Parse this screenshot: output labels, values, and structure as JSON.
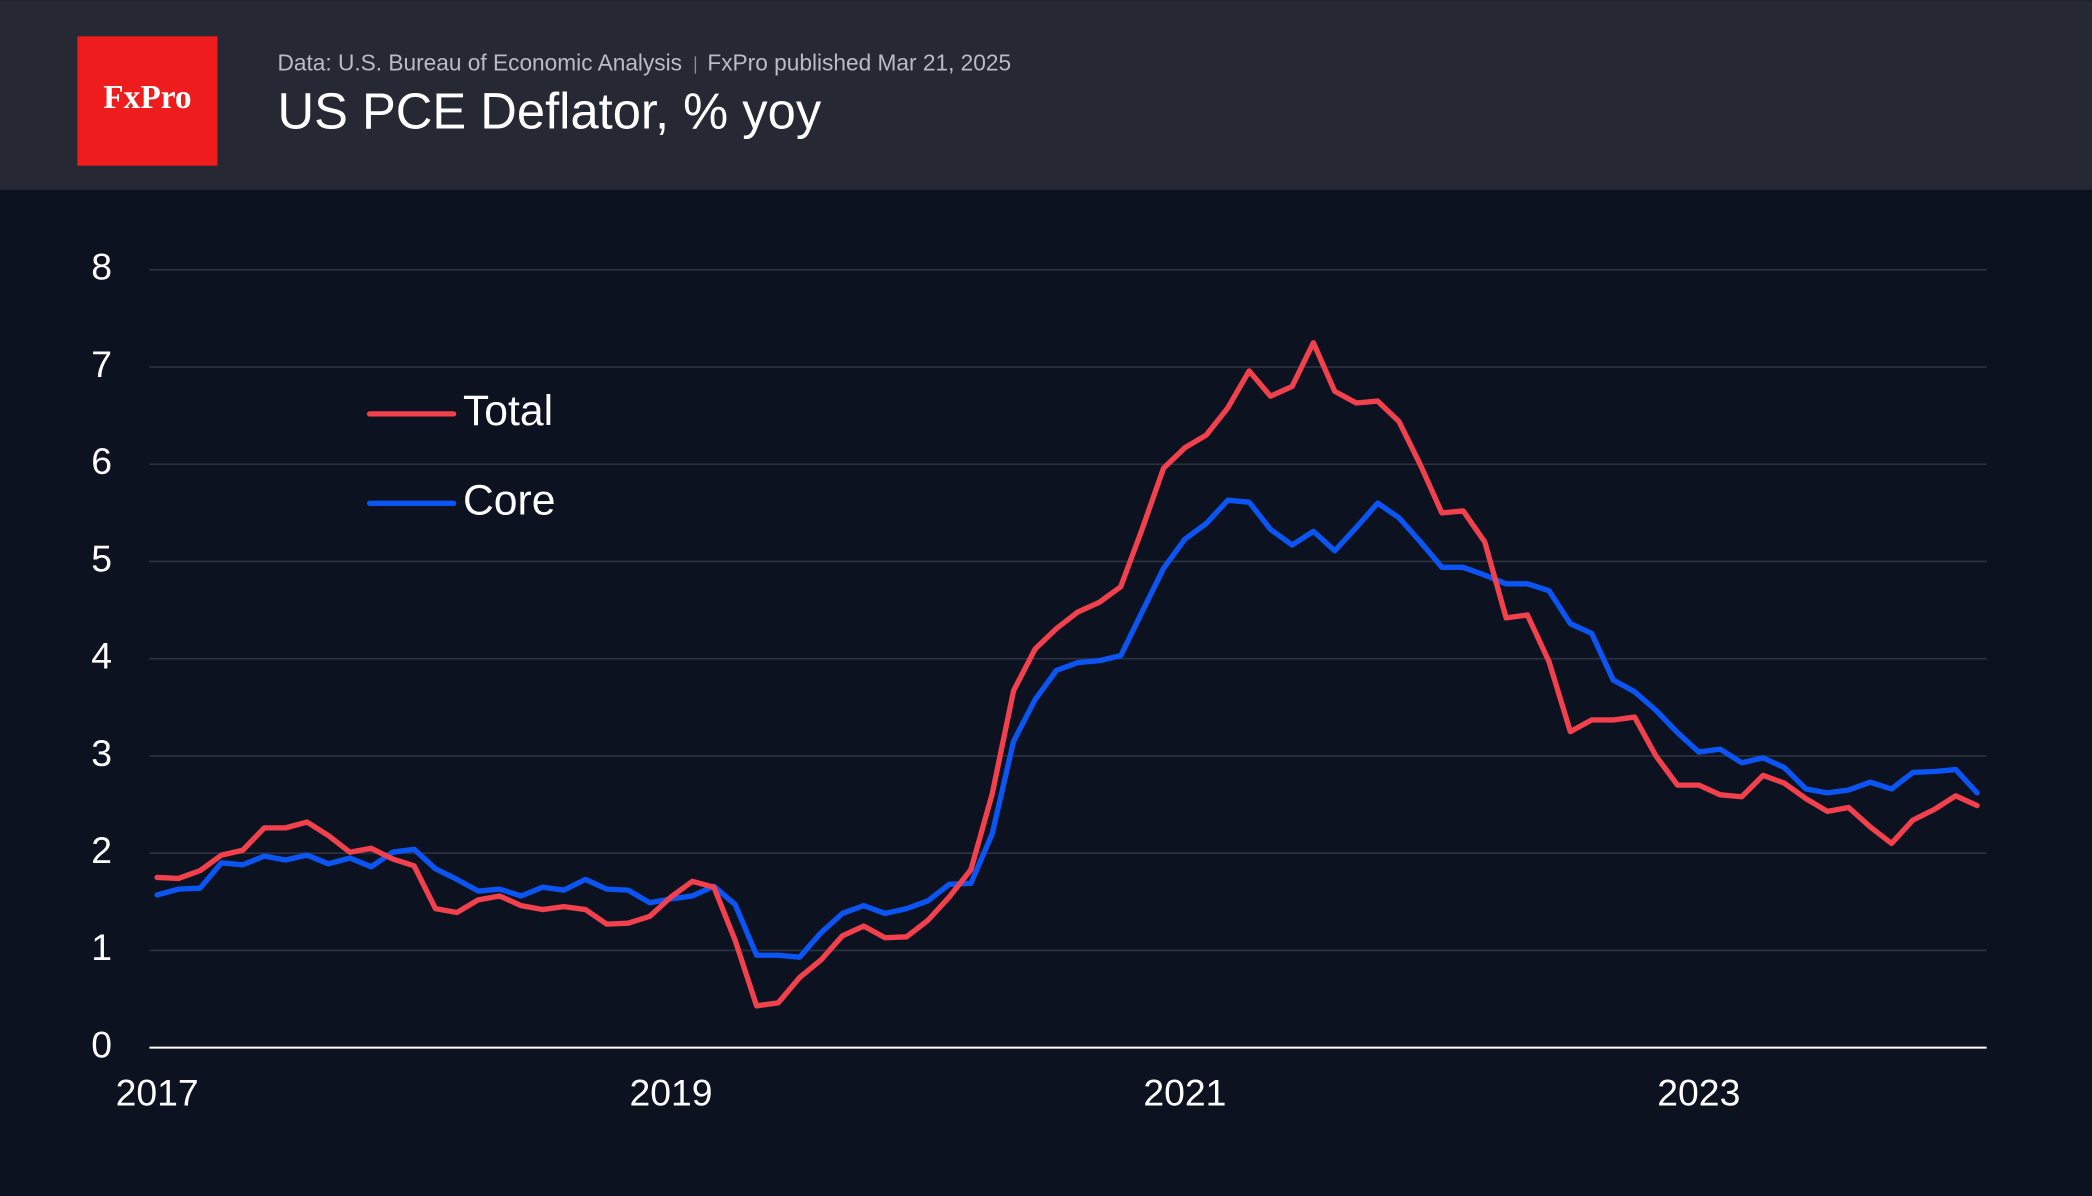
{
  "logo": "FxPro",
  "source": "Data: U.S. Bureau of Economic Analysis",
  "published": "FxPro published Mar 21, 2025",
  "chart_data": {
    "type": "line",
    "title": "US PCE Deflator, % yoy",
    "x": [
      2017,
      2017.083,
      2017.167,
      2017.25,
      2017.333,
      2017.417,
      2017.5,
      2017.583,
      2017.667,
      2017.75,
      2017.833,
      2017.917,
      2018,
      2018.083,
      2018.167,
      2018.25,
      2018.333,
      2018.417,
      2018.5,
      2018.583,
      2018.667,
      2018.75,
      2018.833,
      2018.917,
      2019,
      2019.083,
      2019.167,
      2019.25,
      2019.333,
      2019.417,
      2019.5,
      2019.583,
      2019.667,
      2019.75,
      2019.833,
      2019.917,
      2020,
      2020.083,
      2020.167,
      2020.25,
      2020.333,
      2020.417,
      2020.5,
      2020.583,
      2020.667,
      2020.75,
      2020.833,
      2020.917,
      2021,
      2021.083,
      2021.167,
      2021.25,
      2021.333,
      2021.417,
      2021.5,
      2021.583,
      2021.667,
      2021.75,
      2021.833,
      2021.917,
      2022,
      2022.083,
      2022.167,
      2022.25,
      2022.333,
      2022.417,
      2022.5,
      2022.583,
      2022.667,
      2022.75,
      2022.833,
      2022.917,
      2023,
      2023.083,
      2023.167,
      2023.25,
      2023.333,
      2023.417,
      2023.5,
      2023.583,
      2023.667,
      2023.75,
      2023.833,
      2023.917,
      2024,
      2024.083
    ],
    "series": [
      {
        "name": "Total",
        "color": "#f2414d",
        "values": [
          1.75,
          1.74,
          1.82,
          1.98,
          2.03,
          2.26,
          2.26,
          2.32,
          2.18,
          2.01,
          2.05,
          1.94,
          1.87,
          1.43,
          1.39,
          1.52,
          1.56,
          1.46,
          1.42,
          1.45,
          1.42,
          1.27,
          1.28,
          1.35,
          1.55,
          1.71,
          1.65,
          1.1,
          0.43,
          0.46,
          0.72,
          0.9,
          1.15,
          1.25,
          1.13,
          1.14,
          1.31,
          1.55,
          1.83,
          2.61,
          3.67,
          4.1,
          4.31,
          4.48,
          4.58,
          4.74,
          5.33,
          5.96,
          6.17,
          6.3,
          6.58,
          6.96,
          6.7,
          6.8,
          7.25,
          6.75,
          6.63,
          6.65,
          6.44,
          5.99,
          5.5,
          5.52,
          5.2,
          4.42,
          4.45,
          3.97,
          3.25,
          3.37,
          3.37,
          3.4,
          3.0,
          2.7,
          2.7,
          2.6,
          2.58,
          2.8,
          2.72,
          2.56,
          2.43,
          2.47,
          2.27,
          2.1,
          2.34,
          2.45,
          2.59,
          2.49
        ]
      },
      {
        "name": "Core",
        "color": "#0c55f5",
        "values": [
          1.57,
          1.63,
          1.64,
          1.9,
          1.88,
          1.97,
          1.93,
          1.98,
          1.89,
          1.95,
          1.86,
          2.01,
          2.04,
          1.84,
          1.73,
          1.61,
          1.63,
          1.56,
          1.65,
          1.62,
          1.73,
          1.63,
          1.62,
          1.49,
          1.53,
          1.56,
          1.66,
          1.47,
          0.95,
          0.95,
          0.93,
          1.18,
          1.38,
          1.46,
          1.38,
          1.43,
          1.51,
          1.68,
          1.69,
          2.2,
          3.15,
          3.58,
          3.88,
          3.96,
          3.98,
          4.03,
          4.48,
          4.93,
          5.23,
          5.39,
          5.63,
          5.61,
          5.33,
          5.17,
          5.31,
          5.11,
          5.35,
          5.6,
          5.45,
          5.2,
          4.94,
          4.94,
          4.86,
          4.77,
          4.77,
          4.7,
          4.36,
          4.26,
          3.78,
          3.66,
          3.47,
          3.24,
          3.04,
          3.07,
          2.93,
          2.98,
          2.88,
          2.66,
          2.62,
          2.65,
          2.73,
          2.66,
          2.83,
          2.84,
          2.86,
          2.62
        ]
      }
    ],
    "xlim": [
      2016.97,
      2024.12
    ],
    "xticks": [
      2017,
      2019,
      2021,
      2023
    ],
    "ylim": [
      0,
      8
    ],
    "yticks": [
      0,
      1,
      2,
      3,
      4,
      5,
      6,
      7,
      8
    ],
    "grid": true,
    "legend": "upper-left"
  }
}
